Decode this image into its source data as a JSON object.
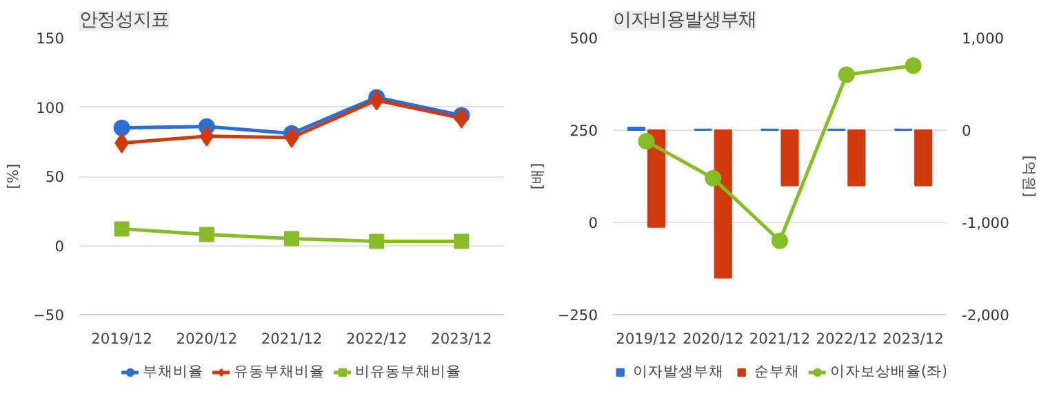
{
  "chart_data": [
    {
      "type": "line",
      "title": "안정성지표",
      "ylabel": "[%]",
      "categories": [
        "2019/12",
        "2020/12",
        "2021/12",
        "2022/12",
        "2023/12"
      ],
      "series": [
        {
          "name": "부채비율",
          "color": "#2a6fd6",
          "marker": "circle",
          "values": [
            85,
            86,
            81,
            107,
            94
          ]
        },
        {
          "name": "유동부채비율",
          "color": "#d03a0c",
          "marker": "diamond",
          "values": [
            74,
            79,
            78,
            105,
            92
          ]
        },
        {
          "name": "비유동부채비율",
          "color": "#86bc25",
          "marker": "square",
          "values": [
            12,
            8,
            5,
            3,
            3
          ]
        }
      ],
      "ylim": [
        -50,
        150
      ],
      "yticks": [
        -50,
        0,
        50,
        100,
        150
      ],
      "grid": "y",
      "legend": "bottom"
    },
    {
      "type": "bar",
      "title": "이자비용발생부채",
      "ylabel": "[배]",
      "y2label": "[억원]",
      "categories": [
        "2019/12",
        "2020/12",
        "2021/12",
        "2022/12",
        "2023/12"
      ],
      "series": [
        {
          "name": "이자발생부채",
          "type": "bar",
          "axis": "y2",
          "color": "#2a6fd6",
          "values": [
            30,
            10,
            10,
            10,
            10
          ]
        },
        {
          "name": "순부채",
          "type": "bar",
          "axis": "y2",
          "color": "#d03a0c",
          "values": [
            -1050,
            -1600,
            -600,
            -600,
            -600
          ]
        },
        {
          "name": "이자보상배율(좌)",
          "type": "line",
          "axis": "y",
          "color": "#86bc25",
          "marker": "circle",
          "values": [
            220,
            120,
            -50,
            400,
            425
          ]
        }
      ],
      "ylim": [
        -250,
        500
      ],
      "yticks": [
        -250,
        0,
        250,
        500
      ],
      "y2lim": [
        -2000,
        1000
      ],
      "y2ticks": [
        {
          "value": -2000,
          "label": "-2,000"
        },
        {
          "value": -1000,
          "label": "-1,000"
        },
        0,
        {
          "value": 1000,
          "label": "1,000"
        }
      ],
      "grid": "y",
      "legend": "bottom"
    }
  ]
}
